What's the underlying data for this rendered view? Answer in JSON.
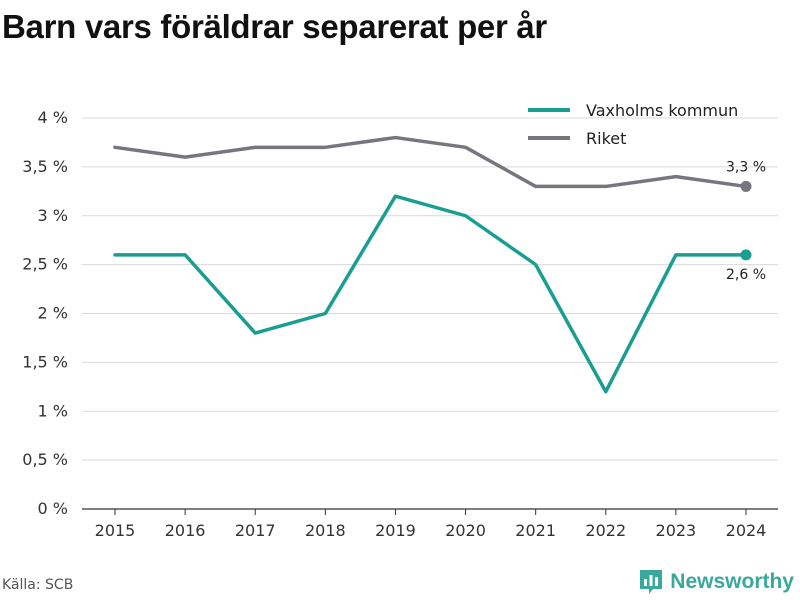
{
  "title": "Barn vars föräldrar separerat per år",
  "source": "Källa: SCB",
  "brand": {
    "name": "Newsworthy",
    "icon": "newsworthy-logo-icon",
    "color": "#3aa89c"
  },
  "chart_data": {
    "type": "line",
    "title": "Barn vars föräldrar separerat per år",
    "xlabel": "",
    "ylabel": "",
    "x": [
      2015,
      2016,
      2017,
      2018,
      2019,
      2020,
      2021,
      2022,
      2023,
      2024
    ],
    "ylim": [
      0,
      4
    ],
    "yticks": [
      0,
      0.5,
      1,
      1.5,
      2,
      2.5,
      3,
      3.5,
      4
    ],
    "ytick_labels": [
      "0 %",
      "0,5 %",
      "1 %",
      "1,5 %",
      "2 %",
      "2,5 %",
      "3 %",
      "3,5 %",
      "4 %"
    ],
    "grid": true,
    "legend": "top-right",
    "series": [
      {
        "name": "Vaxholms kommun",
        "color": "#1a9e92",
        "values": [
          2.6,
          2.6,
          1.8,
          2.0,
          3.2,
          3.0,
          2.5,
          1.2,
          2.6,
          2.6
        ],
        "end_label": "2,6 %"
      },
      {
        "name": "Riket",
        "color": "#76767e",
        "values": [
          3.7,
          3.6,
          3.7,
          3.7,
          3.8,
          3.7,
          3.3,
          3.3,
          3.4,
          3.3
        ],
        "end_label": "3,3 %"
      }
    ]
  }
}
